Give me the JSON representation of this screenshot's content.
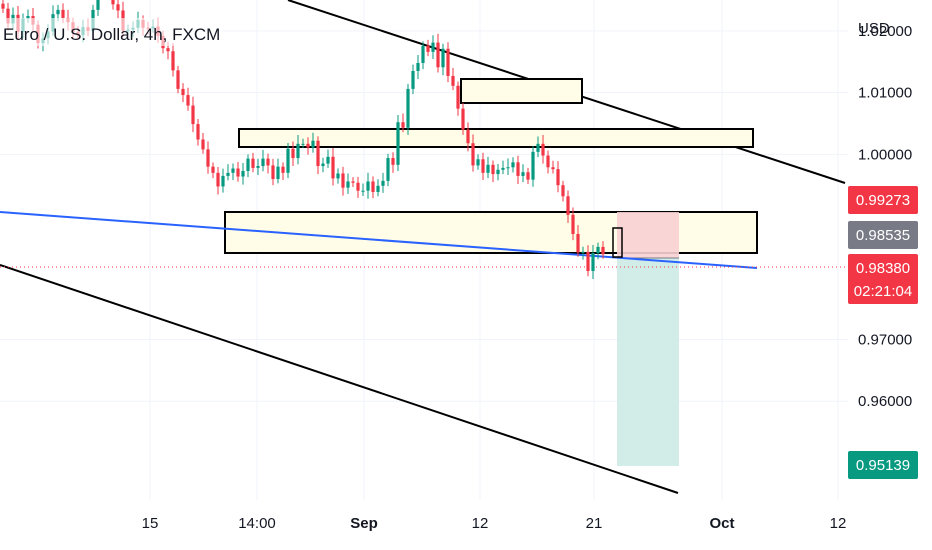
{
  "header": {
    "symbol_title": "Euro / U.S. Dollar, 4h, FXCM",
    "currency": "USD"
  },
  "price_axis": {
    "ticks": [
      "1.02000",
      "1.01000",
      "1.00000",
      "0.97000",
      "0.96000"
    ]
  },
  "time_axis": {
    "ticks": [
      {
        "label": "15",
        "bold": false
      },
      {
        "label": "14:00",
        "bold": false
      },
      {
        "label": "Sep",
        "bold": true
      },
      {
        "label": "12",
        "bold": false
      },
      {
        "label": "21",
        "bold": false
      },
      {
        "label": "Oct",
        "bold": true
      },
      {
        "label": "12",
        "bold": false
      }
    ]
  },
  "price_badges": [
    {
      "id": "stop-loss",
      "value": "0.99273",
      "color": "#f23645"
    },
    {
      "id": "entry",
      "value": "0.98535",
      "color": "#787b86"
    },
    {
      "id": "current-price",
      "value": "0.98380",
      "color": "#f23645",
      "countdown": "02:21:04"
    },
    {
      "id": "take-profit",
      "value": "0.95139",
      "color": "#089981"
    }
  ],
  "colors": {
    "up_candle": "#089981",
    "down_candle": "#f23645",
    "zone_fill": "#fffde7",
    "risk_fill": "#f8d0d3",
    "reward_fill": "#cdeae4",
    "trendline_blue": "#2962ff",
    "channel_line": "#000000",
    "grid": "#f0f3fa"
  },
  "chart_data": {
    "type": "candlestick",
    "symbol": "Euro / U.S. Dollar",
    "interval": "4h",
    "source": "FXCM",
    "y_unit": "USD",
    "ylim": [
      0.944,
      1.025
    ],
    "grid": true,
    "y_ticks": [
      1.02,
      1.01,
      1.0,
      0.97,
      0.96
    ],
    "x_ticks": [
      "15",
      "14:00",
      "Sep",
      "12",
      "21",
      "Oct",
      "12"
    ],
    "current_price": 0.9838,
    "position": {
      "side": "short",
      "entry": 0.98535,
      "stop": 0.99273,
      "target": 0.95139
    },
    "zones": [
      {
        "from": 1.011,
        "to": 1.0134
      },
      {
        "from": 1.0022,
        "to": 1.0041
      },
      {
        "from": 0.9858,
        "to": 0.9926
      }
    ],
    "closes": [
      1.0236,
      1.0212,
      1.0226,
      1.0198,
      1.022,
      1.0224,
      1.021,
      1.018,
      1.0188,
      1.0199,
      1.0227,
      1.0234,
      1.0221,
      1.0214,
      1.0198,
      1.0193,
      1.0206,
      1.02,
      1.0234,
      1.0258,
      1.0279,
      1.028,
      1.0243,
      1.0233,
      1.02,
      1.0202,
      1.0205,
      1.0218,
      1.0205,
      1.0204,
      1.0207,
      1.0192,
      1.0172,
      1.0167,
      1.0136,
      1.0106,
      1.0096,
      1.0079,
      1.0049,
      1.0024,
      1.0008,
      0.998,
      0.997,
      0.9948,
      0.9965,
      0.997,
      0.9977,
      0.9964,
      0.9973,
      0.9993,
      0.9978,
      0.9981,
      0.9993,
      0.9982,
      0.996,
      0.998,
      0.997,
      1.0009,
      0.9994,
      1.0017,
      1.0017,
      1.0011,
      1.0022,
      0.9981,
      0.9985,
      0.9996,
      0.9961,
      0.9969,
      0.9946,
      0.9956,
      0.9954,
      0.9941,
      0.9941,
      0.9956,
      0.9939,
      0.9949,
      0.9957,
      0.9994,
      0.9983,
      1.0052,
      1.0043,
      1.0106,
      1.0135,
      1.0148,
      1.0176,
      1.0166,
      1.0181,
      1.0141,
      1.0171,
      1.0127,
      1.0111,
      1.0074,
      1.004,
      1.0018,
      0.9982,
      0.9992,
      0.997,
      0.9983,
      0.9968,
      0.9975,
      0.9978,
      0.9979,
      0.9987,
      0.9965,
      0.9971,
      0.9959,
      1.0004,
      1.0017,
      0.9998,
      0.9979,
      0.9976,
      0.995,
      0.9932,
      0.9902,
      0.9871,
      0.9841,
      0.9842,
      0.9811,
      0.984,
      0.985,
      0.9838
    ]
  }
}
